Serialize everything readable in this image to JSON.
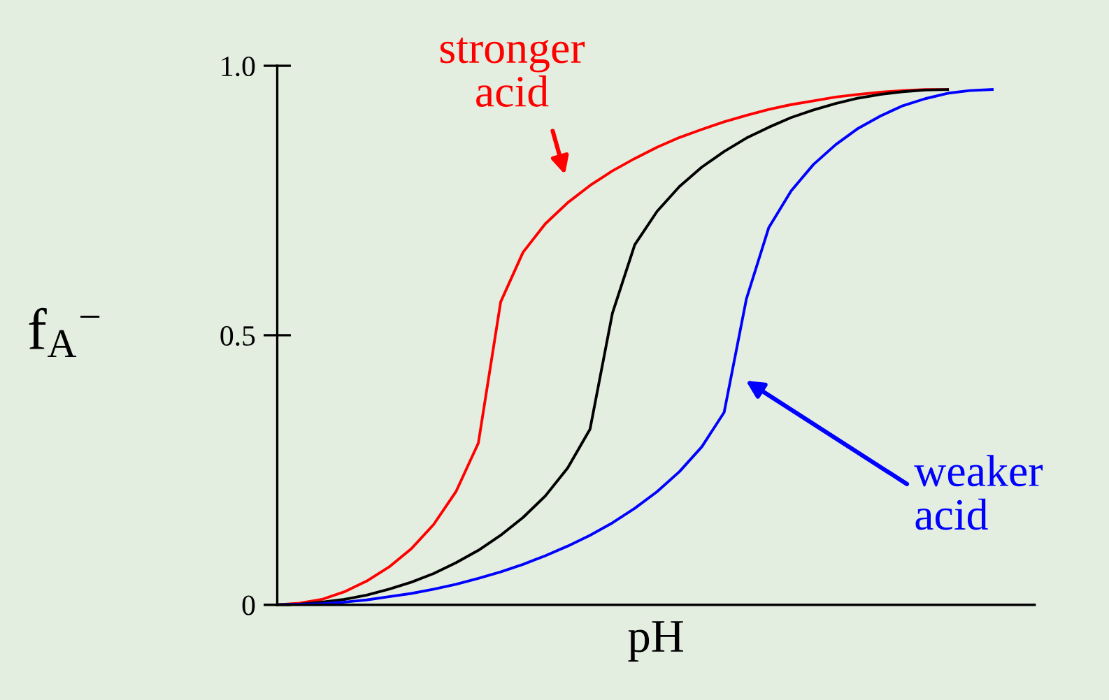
{
  "chart_data": {
    "type": "line",
    "xlabel": "pH",
    "ylabel": "f$_{A}$$^{−}$",
    "categories": [
      null,
      null,
      null,
      null,
      null,
      null,
      null,
      null,
      null,
      null,
      null,
      null,
      null,
      null,
      null,
      null,
      null,
      null,
      null,
      null,
      null,
      null,
      null,
      null,
      null,
      null,
      null,
      null,
      null,
      null,
      null,
      null,
      null
    ],
    "series": [
      {
        "color": "#ff0000",
        "values": [
          0,
          0.003,
          0.01,
          0.024,
          0.044,
          0.07,
          0.104,
          0.149,
          0.21,
          0.3,
          0.562,
          0.654,
          0.707,
          0.746,
          0.778,
          0.805,
          0.828,
          0.849,
          0.867,
          0.882,
          0.896,
          0.908,
          0.919,
          0.928,
          0.935,
          0.942,
          0.947,
          0.951,
          0.954,
          0.956,
          0.956,
          null,
          null
        ]
      },
      {
        "color": "#000000",
        "values": [
          0,
          0.001,
          0.005,
          0.01,
          0.018,
          0.029,
          0.042,
          0.058,
          0.078,
          0.101,
          0.129,
          0.162,
          0.202,
          0.254,
          0.326,
          0.541,
          0.668,
          0.73,
          0.776,
          0.812,
          0.841,
          0.866,
          0.886,
          0.904,
          0.918,
          0.93,
          0.94,
          0.947,
          0.952,
          0.955,
          0.956,
          null,
          null
        ]
      },
      {
        "color": "#0000ff",
        "values": [
          0,
          0.001,
          0.002,
          0.005,
          0.009,
          0.015,
          0.021,
          0.029,
          0.038,
          0.049,
          0.061,
          0.075,
          0.091,
          0.109,
          0.129,
          0.152,
          0.179,
          0.21,
          0.247,
          0.293,
          0.357,
          0.568,
          0.7,
          0.768,
          0.817,
          0.854,
          0.884,
          0.907,
          0.926,
          0.939,
          0.949,
          0.954,
          0.956
        ]
      }
    ],
    "ylim": [
      0,
      1.0
    ],
    "yticks": [
      0,
      0.5,
      {
        "value": 1.0,
        "label": "1.0"
      }
    ],
    "tick_labels": "y",
    "annotations": [
      "stronger\nacid",
      "weaker\nacid"
    ]
  }
}
